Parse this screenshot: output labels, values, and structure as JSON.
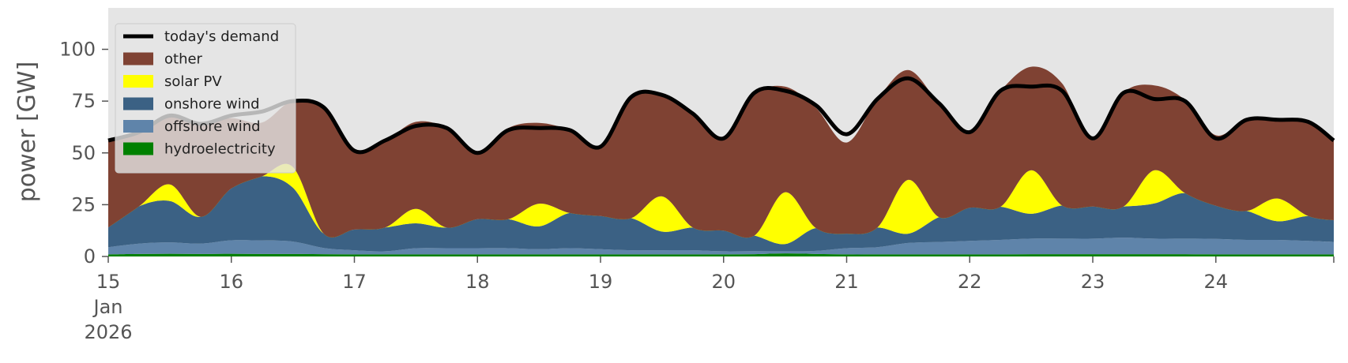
{
  "chart_data": {
    "type": "area",
    "title": "",
    "xlabel": "",
    "ylabel": "power [GW]",
    "x_axis": {
      "start": "2026-01-15T00:00",
      "end": "2026-01-24T23:00",
      "ticks": [
        {
          "date": "2026-01-15",
          "label": "15",
          "month": "Jan",
          "year": "2026"
        },
        {
          "date": "2026-01-16",
          "label": "16"
        },
        {
          "date": "2026-01-17",
          "label": "17"
        },
        {
          "date": "2026-01-18",
          "label": "18"
        },
        {
          "date": "2026-01-19",
          "label": "19"
        },
        {
          "date": "2026-01-20",
          "label": "20"
        },
        {
          "date": "2026-01-21",
          "label": "21"
        },
        {
          "date": "2026-01-22",
          "label": "22"
        },
        {
          "date": "2026-01-23",
          "label": "23"
        },
        {
          "date": "2026-01-24",
          "label": "24"
        }
      ]
    },
    "ylim": [
      0,
      120
    ],
    "yticks": [
      0,
      25,
      50,
      75,
      100
    ],
    "grid": false,
    "background": "#e5e5e5",
    "legend": {
      "position": "top-left"
    },
    "x": [
      "2026-01-15T00:00",
      "2026-01-15T06:00",
      "2026-01-15T12:00",
      "2026-01-15T18:00",
      "2026-01-16T00:00",
      "2026-01-16T06:00",
      "2026-01-16T12:00",
      "2026-01-16T18:00",
      "2026-01-17T00:00",
      "2026-01-17T06:00",
      "2026-01-17T12:00",
      "2026-01-17T18:00",
      "2026-01-18T00:00",
      "2026-01-18T06:00",
      "2026-01-18T12:00",
      "2026-01-18T18:00",
      "2026-01-19T00:00",
      "2026-01-19T06:00",
      "2026-01-19T12:00",
      "2026-01-19T18:00",
      "2026-01-20T00:00",
      "2026-01-20T06:00",
      "2026-01-20T12:00",
      "2026-01-20T18:00",
      "2026-01-21T00:00",
      "2026-01-21T06:00",
      "2026-01-21T12:00",
      "2026-01-21T18:00",
      "2026-01-22T00:00",
      "2026-01-22T06:00",
      "2026-01-22T12:00",
      "2026-01-22T18:00",
      "2026-01-23T00:00",
      "2026-01-23T06:00",
      "2026-01-23T12:00",
      "2026-01-23T18:00",
      "2026-01-24T00:00",
      "2026-01-24T06:00",
      "2026-01-24T12:00",
      "2026-01-24T18:00",
      "2026-01-24T23:00"
    ],
    "series": [
      {
        "name": "hydroelectricity",
        "color": "#008000",
        "kind": "area",
        "values": [
          1.0,
          1.2,
          1.3,
          1.2,
          1.3,
          1.2,
          1.2,
          1.1,
          1.0,
          1.0,
          1.0,
          1.0,
          1.0,
          1.0,
          1.0,
          1.0,
          1.0,
          1.0,
          1.0,
          1.0,
          1.0,
          1.1,
          1.5,
          1.2,
          1.0,
          1.0,
          1.0,
          1.0,
          1.0,
          1.0,
          1.1,
          1.1,
          1.1,
          1.1,
          1.1,
          1.1,
          1.0,
          1.0,
          1.0,
          1.0,
          1.0
        ]
      },
      {
        "name": "offshore wind",
        "color": "#5f84aa",
        "kind": "area",
        "values": [
          3.5,
          5.0,
          5.5,
          5.0,
          6.5,
          6.5,
          6.0,
          3.0,
          2.0,
          1.5,
          3.0,
          3.0,
          3.0,
          3.0,
          2.5,
          3.0,
          2.5,
          2.0,
          2.0,
          2.0,
          1.5,
          1.5,
          1.0,
          1.5,
          3.0,
          3.5,
          5.5,
          6.0,
          6.5,
          7.0,
          7.5,
          7.5,
          7.5,
          8.0,
          7.5,
          7.5,
          7.5,
          7.0,
          7.0,
          6.5,
          6.0
        ]
      },
      {
        "name": "onshore wind",
        "color": "#3b6184",
        "kind": "area",
        "values": [
          9.5,
          18,
          20,
          13,
          25,
          31,
          26,
          7,
          10,
          11.5,
          12,
          10,
          14,
          14,
          11,
          17,
          16,
          15.5,
          9,
          11,
          10,
          7.5,
          3.5,
          11,
          7,
          9.5,
          4.5,
          12,
          16,
          16,
          12,
          16,
          15.5,
          15,
          17,
          22,
          16,
          14,
          9,
          12,
          10.5
        ]
      },
      {
        "name": "solar PV",
        "color": "#ffff00",
        "kind": "area",
        "values": [
          0,
          0,
          8,
          0,
          0,
          0,
          10,
          0,
          0,
          0,
          7,
          0,
          0,
          0,
          11,
          0,
          0,
          0,
          17,
          0,
          0,
          0,
          25,
          0,
          0,
          0,
          26,
          0,
          0,
          0,
          21,
          0,
          0,
          0,
          16,
          0,
          0,
          0,
          11,
          0,
          0
        ]
      },
      {
        "name": "other",
        "color": "#7f4233",
        "kind": "area",
        "values": [
          42,
          36,
          34,
          45,
          34,
          26,
          32,
          60,
          38,
          42,
          42,
          48,
          32,
          44,
          39,
          40,
          34,
          59,
          49,
          55,
          45,
          68,
          51,
          58,
          44,
          62,
          53,
          55,
          37,
          56,
          50,
          59,
          32,
          55,
          41,
          45,
          34,
          44,
          38,
          46,
          39
        ]
      },
      {
        "name": "today's demand",
        "color": "#000000",
        "kind": "line",
        "values": [
          56,
          60,
          68,
          64,
          68,
          70,
          75,
          72,
          51,
          56,
          63,
          62,
          50,
          61,
          62,
          61,
          53,
          77,
          78,
          69,
          57,
          79,
          80,
          73,
          59,
          76,
          86,
          74,
          60,
          80,
          82,
          80,
          57,
          79,
          76,
          75,
          57,
          66,
          66,
          65,
          56
        ]
      }
    ]
  }
}
